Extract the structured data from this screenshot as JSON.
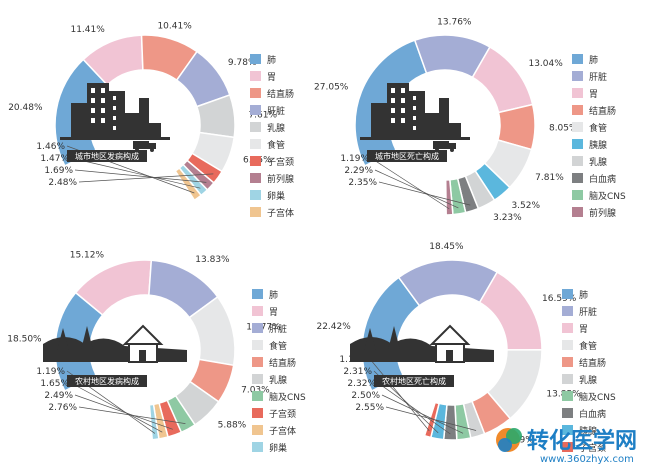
{
  "chart_data": [
    {
      "type": "donut",
      "title": "城市地区发病构成",
      "categories": [
        "肺",
        "胃",
        "结直肠",
        "肝脏",
        "乳腺",
        "食管",
        "子宫颈",
        "前列腺",
        "卵巢",
        "子宫体"
      ],
      "values": [
        20.48,
        11.41,
        10.41,
        9.78,
        7.61,
        6.45,
        2.48,
        1.69,
        1.47,
        1.46
      ],
      "labels": [
        "20.48%",
        "11.41%",
        "10.41%",
        "9.78%",
        "7.61%",
        "6.45%",
        "2.48%",
        "1.69%",
        "1.47%",
        "1.46%"
      ],
      "colors": [
        "#6fa8d6",
        "#f1c4d4",
        "#ee9787",
        "#a4add5",
        "#d2d4d5",
        "#e6e7e8",
        "#e86a5c",
        "#b47f90",
        "#9fd4e4",
        "#f0c590"
      ],
      "icon": "city-skyline-icon"
    },
    {
      "type": "donut",
      "title": "城市地区死亡构成",
      "categories": [
        "肺",
        "肝脏",
        "胃",
        "结直肠",
        "食管",
        "胰腺",
        "乳腺",
        "白血病",
        "脑及CNS",
        "前列腺"
      ],
      "values": [
        27.05,
        13.76,
        13.04,
        8.05,
        7.81,
        3.52,
        3.23,
        2.35,
        2.29,
        1.19
      ],
      "labels": [
        "27.05%",
        "13.76%",
        "13.04%",
        "8.05%",
        "7.81%",
        "3.52%",
        "3.23%",
        "2.35%",
        "2.29%",
        "1.19%"
      ],
      "colors": [
        "#6fa8d6",
        "#a4add5",
        "#f1c4d4",
        "#ee9787",
        "#e6e7e8",
        "#5bb7dd",
        "#d2d4d5",
        "#7d7f81",
        "#8ec9a3",
        "#b47f90"
      ],
      "icon": "city-skyline-icon"
    },
    {
      "type": "donut",
      "title": "农村地区发病构成",
      "categories": [
        "肺",
        "胃",
        "肝脏",
        "食管",
        "结直肠",
        "乳腺",
        "脑及CNS",
        "子宫颈",
        "子宫体",
        "卵巢"
      ],
      "values": [
        18.5,
        15.12,
        13.83,
        12.77,
        7.03,
        5.88,
        2.76,
        2.49,
        1.65,
        1.19
      ],
      "labels": [
        "18.50%",
        "15.12%",
        "13.83%",
        "12.77%",
        "7.03%",
        "5.88%",
        "2.76%",
        "2.49%",
        "1.65%",
        "1.19%"
      ],
      "colors": [
        "#6fa8d6",
        "#f1c4d4",
        "#a4add5",
        "#e6e7e8",
        "#ee9787",
        "#d2d4d5",
        "#8ec9a3",
        "#e86a5c",
        "#f0c590",
        "#9fd4e4"
      ],
      "icon": "village-house-icon"
    },
    {
      "type": "donut",
      "title": "农村地区死亡构成",
      "categories": [
        "肺",
        "肝脏",
        "胃",
        "食管",
        "结直肠",
        "乳腺",
        "脑及CNS",
        "白血病",
        "胰腺",
        "子宫颈"
      ],
      "values": [
        22.42,
        18.45,
        16.59,
        13.85,
        5.29,
        2.55,
        2.5,
        2.32,
        2.31,
        1.16
      ],
      "labels": [
        "22.42%",
        "18.45%",
        "16.59%",
        "13.85%",
        "5.29%",
        "2.55%",
        "2.50%",
        "2.32%",
        "2.31%",
        "1.16%"
      ],
      "colors": [
        "#6fa8d6",
        "#a4add5",
        "#f1c4d4",
        "#e6e7e8",
        "#ee9787",
        "#d2d4d5",
        "#8ec9a3",
        "#7d7f81",
        "#5bb7dd",
        "#e86a5c"
      ],
      "icon": "village-house-icon"
    }
  ],
  "watermark": {
    "name": "转化医学网",
    "url": "www.360zhyx.com"
  }
}
